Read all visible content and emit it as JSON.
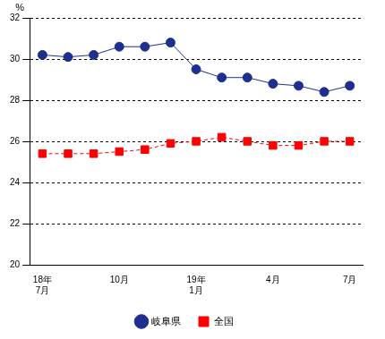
{
  "chart_data": {
    "type": "line",
    "y_label": "%",
    "categories": [
      [
        "18年",
        "7月"
      ],
      null,
      null,
      "10月",
      null,
      null,
      [
        "19年",
        "1月"
      ],
      null,
      null,
      "4月",
      null,
      null,
      "7月"
    ],
    "series": [
      {
        "name": "岐阜県",
        "color": "#1f2f8f",
        "marker": "circle",
        "line_style": "solid",
        "values": [
          30.2,
          30.1,
          30.2,
          30.6,
          30.6,
          30.8,
          29.5,
          29.1,
          29.1,
          28.8,
          28.7,
          28.4,
          28.7
        ]
      },
      {
        "name": "全国",
        "color": "#ff0000",
        "marker": "square",
        "line_style": "dashed",
        "values": [
          25.4,
          25.4,
          25.4,
          25.5,
          25.6,
          25.9,
          26.0,
          26.2,
          26.0,
          25.8,
          25.8,
          26.0,
          26.0
        ]
      }
    ],
    "ylim": [
      20,
      32
    ],
    "yticks": [
      20,
      22,
      24,
      26,
      28,
      30,
      32
    ],
    "grid": true,
    "legend": "bottom"
  }
}
